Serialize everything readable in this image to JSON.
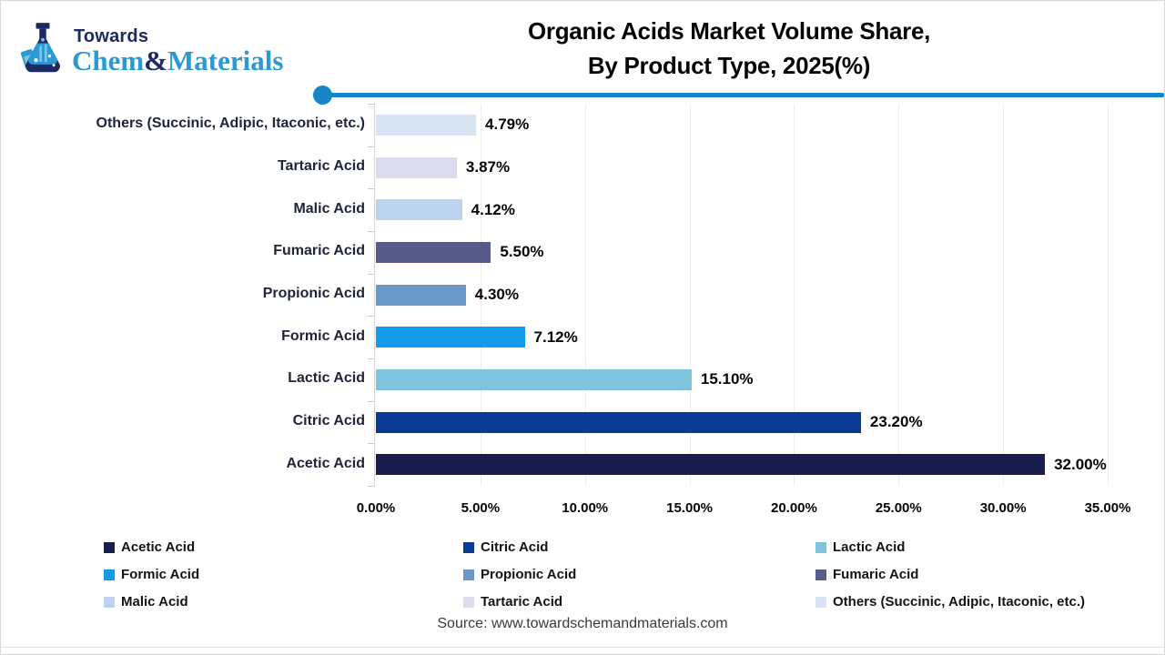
{
  "logo": {
    "towards": "Towards",
    "chem": "Chem",
    "ampersand": "&",
    "materials": "Materials",
    "navy": "#1e2a63",
    "blue": "#2b99d3"
  },
  "title": {
    "line1": "Organic Acids Market Volume Share,",
    "line2": "By Product Type, 2025(%)"
  },
  "divider": {
    "color": "#1786c7"
  },
  "chart_data": {
    "type": "bar",
    "orientation": "horizontal",
    "title": "Organic Acids Market Volume Share, By Product Type, 2025(%)",
    "categories": [
      "Others (Succinic, Adipic, Itaconic, etc.)",
      "Tartaric Acid",
      "Malic Acid",
      "Fumaric Acid",
      "Propionic Acid",
      "Formic Acid",
      "Lactic Acid",
      "Citric Acid",
      "Acetic Acid"
    ],
    "values": [
      4.79,
      3.87,
      4.12,
      5.5,
      4.3,
      7.12,
      15.1,
      23.2,
      32.0
    ],
    "value_labels": [
      "4.79%",
      "3.87%",
      "4.12%",
      "5.50%",
      "4.30%",
      "7.12%",
      "15.10%",
      "23.20%",
      "32.00%"
    ],
    "bar_colors": [
      "#d9e4f3",
      "#dadced",
      "#bcd2ef",
      "#565b8a",
      "#6a98c8",
      "#149bea",
      "#7fc4dd",
      "#0b3a96",
      "#191d4d"
    ],
    "x_ticks": [
      "0.00%",
      "5.00%",
      "10.00%",
      "15.00%",
      "20.00%",
      "25.00%",
      "30.00%",
      "35.00%"
    ],
    "xlim": [
      0,
      35
    ],
    "grid": "vertical-faint",
    "legend_position": "bottom"
  },
  "legend": {
    "items": [
      {
        "label": "Acetic Acid",
        "color": "#191d4d"
      },
      {
        "label": "Citric Acid",
        "color": "#0b3a96"
      },
      {
        "label": "Lactic Acid",
        "color": "#7fc4dd"
      },
      {
        "label": "Formic Acid",
        "color": "#149bea"
      },
      {
        "label": "Propionic Acid",
        "color": "#6a98c8"
      },
      {
        "label": "Fumaric Acid",
        "color": "#565b8a"
      },
      {
        "label": "Malic Acid",
        "color": "#bcd2ef"
      },
      {
        "label": "Tartaric Acid",
        "color": "#dadced"
      },
      {
        "label": "Others (Succinic, Adipic, Itaconic, etc.)",
        "color": "#d9e4f3"
      }
    ]
  },
  "source": "Source: www.towardschemandmaterials.com"
}
